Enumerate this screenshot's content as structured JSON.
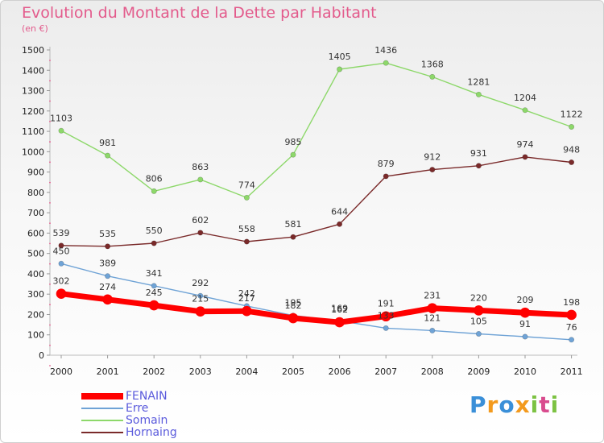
{
  "chart_data": {
    "type": "line",
    "title": "Evolution du Montant de la Dette par Habitant",
    "subtitle": "(en €)",
    "x": [
      "2000",
      "2001",
      "2002",
      "2003",
      "2004",
      "2005",
      "2006",
      "2007",
      "2008",
      "2009",
      "2010",
      "2011"
    ],
    "ylim": [
      0,
      1500
    ],
    "yticks": [
      "0",
      "100",
      "200",
      "300",
      "400",
      "500",
      "600",
      "700",
      "800",
      "900",
      "1000",
      "1100",
      "1200",
      "1300",
      "1400",
      "1500"
    ],
    "grid": false,
    "legend_position": "bottom-left",
    "series": [
      {
        "name": "FENAIN",
        "color": "#ff0000",
        "values": [
          302,
          274,
          245,
          215,
          217,
          182,
          162,
          191,
          231,
          220,
          209,
          198
        ]
      },
      {
        "name": "Erre",
        "color": "#6fa3d6",
        "values": [
          450,
          389,
          341,
          292,
          242,
          195,
          169,
          133,
          121,
          105,
          91,
          76
        ]
      },
      {
        "name": "Somain",
        "color": "#8dd86a",
        "values": [
          1103,
          981,
          806,
          863,
          774,
          985,
          1405,
          1436,
          1368,
          1281,
          1204,
          1122
        ]
      },
      {
        "name": "Hornaing",
        "color": "#7a2a2a",
        "values": [
          539,
          535,
          550,
          602,
          558,
          581,
          644,
          879,
          912,
          931,
          974,
          948
        ]
      }
    ]
  },
  "brand": {
    "letters": [
      "P",
      "r",
      "o",
      "x",
      "i",
      "t",
      "i"
    ],
    "colors": [
      "#3a8fd8",
      "#f39a1d",
      "#3a8fd8",
      "#f39a1d",
      "#7cc242",
      "#d94b8e",
      "#7cc242"
    ]
  }
}
